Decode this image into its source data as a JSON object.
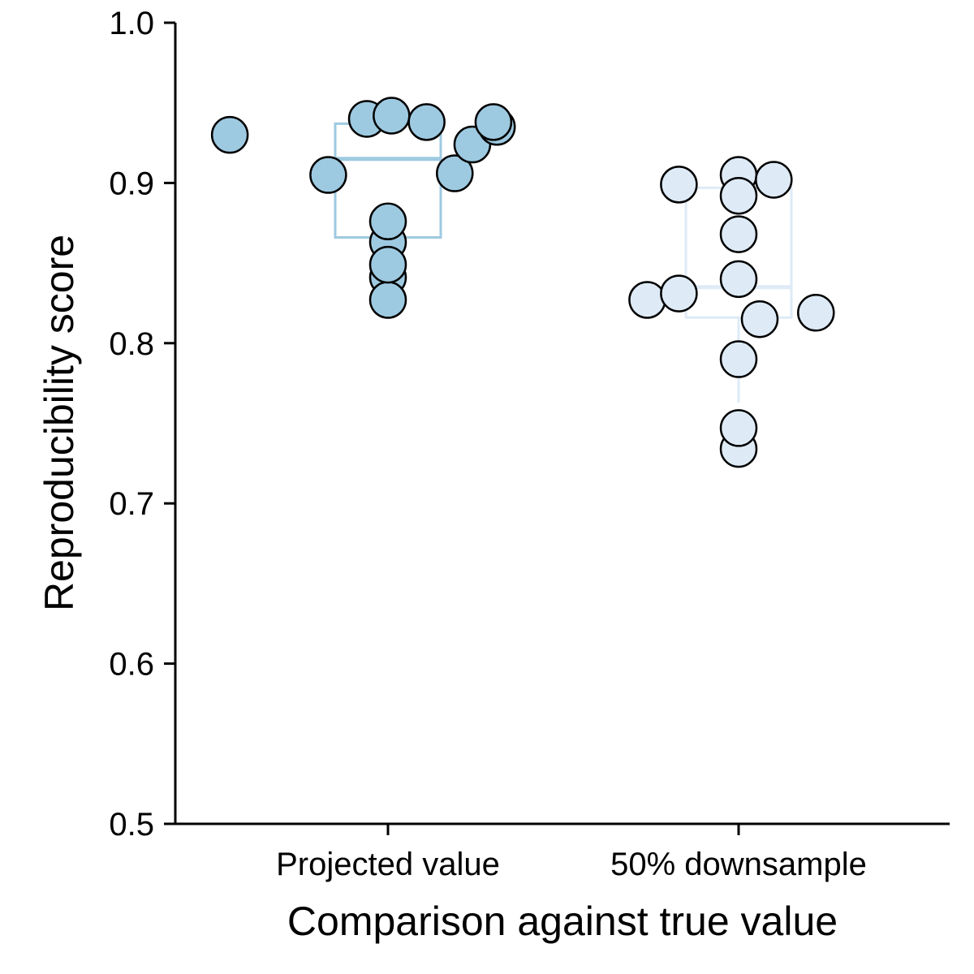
{
  "chart_data": {
    "type": "scatter",
    "subtype": "box-and-swarm",
    "xlabel": "Comparison against true value",
    "ylabel": "Reproducibility score",
    "ylim": [
      0.5,
      1.0
    ],
    "yticks": [
      "0.5",
      "0.6",
      "0.7",
      "0.8",
      "0.9",
      "1.0"
    ],
    "grid": false,
    "categories": [
      "Projected value",
      "50% downsample"
    ],
    "series": [
      {
        "category": "Projected value",
        "color": "#9ecae1",
        "box": {
          "q1": 0.866,
          "median": 0.915,
          "q3": 0.937,
          "whisker_low": 0.866,
          "whisker_high": 0.937
        },
        "points": [
          {
            "x_offset": -0.45,
            "y": 0.93
          },
          {
            "x_offset": -0.17,
            "y": 0.905
          },
          {
            "x_offset": -0.06,
            "y": 0.94
          },
          {
            "x_offset": 0.01,
            "y": 0.942
          },
          {
            "x_offset": 0.11,
            "y": 0.938
          },
          {
            "x_offset": 0.19,
            "y": 0.906
          },
          {
            "x_offset": 0.24,
            "y": 0.924
          },
          {
            "x_offset": 0.31,
            "y": 0.935
          },
          {
            "x_offset": 0.3,
            "y": 0.938
          },
          {
            "x_offset": 0.0,
            "y": 0.863
          },
          {
            "x_offset": 0.0,
            "y": 0.876
          },
          {
            "x_offset": 0.0,
            "y": 0.841
          },
          {
            "x_offset": 0.0,
            "y": 0.827
          },
          {
            "x_offset": 0.0,
            "y": 0.849
          }
        ]
      },
      {
        "category": "50% downsample",
        "color": "#deebf7",
        "box": {
          "q1": 0.816,
          "median": 0.835,
          "q3": 0.897,
          "whisker_low": 0.763,
          "whisker_high": 0.897
        },
        "points": [
          {
            "x_offset": -0.17,
            "y": 0.899
          },
          {
            "x_offset": 0.0,
            "y": 0.905
          },
          {
            "x_offset": 0.1,
            "y": 0.902
          },
          {
            "x_offset": 0.0,
            "y": 0.892
          },
          {
            "x_offset": 0.0,
            "y": 0.868
          },
          {
            "x_offset": 0.0,
            "y": 0.84
          },
          {
            "x_offset": -0.26,
            "y": 0.827
          },
          {
            "x_offset": -0.17,
            "y": 0.831
          },
          {
            "x_offset": 0.06,
            "y": 0.815
          },
          {
            "x_offset": 0.22,
            "y": 0.819
          },
          {
            "x_offset": 0.0,
            "y": 0.79
          },
          {
            "x_offset": 0.0,
            "y": 0.734
          },
          {
            "x_offset": 0.0,
            "y": 0.747
          }
        ]
      }
    ]
  }
}
